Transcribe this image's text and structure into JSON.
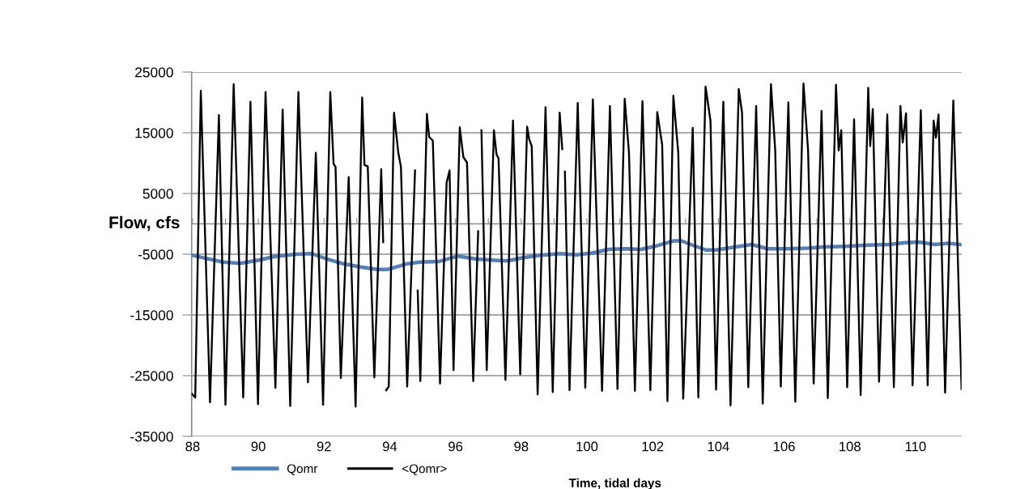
{
  "chart_data": {
    "type": "line",
    "ylabel": "Flow, cfs",
    "xlabel": "Time, tidal days",
    "xlim": [
      87.97,
      111.4
    ],
    "xticks": [
      88,
      {
        "value": 89,
        "label": null
      },
      90,
      {
        "value": 91,
        "label": null
      },
      92,
      {
        "value": 93,
        "label": null
      },
      94,
      {
        "value": 95,
        "label": null
      },
      96,
      {
        "value": 97,
        "label": null
      },
      98,
      {
        "value": 99,
        "label": null
      },
      100,
      {
        "value": 101,
        "label": null
      },
      102,
      {
        "value": 103,
        "label": null
      },
      104,
      {
        "value": 105,
        "label": null
      },
      106,
      {
        "value": 107,
        "label": null
      },
      108,
      {
        "value": 109,
        "label": null
      },
      110,
      {
        "value": 111,
        "label": null
      }
    ],
    "ylim": [
      -35000,
      25000
    ],
    "yticks": [
      -35000,
      -25000,
      -15000,
      -5000,
      5000,
      15000,
      25000
    ],
    "grid": "y",
    "legend": "bottom",
    "marker": "none",
    "line_style": "solid",
    "series": [
      {
        "name": "Qomr",
        "color": "#4f81bd",
        "x": [
          88.0,
          88.92,
          89.45,
          89.99,
          90.48,
          91.14,
          91.63,
          92.04,
          92.61,
          93.11,
          93.6,
          93.93,
          94.5,
          94.91,
          95.49,
          96.06,
          96.64,
          97.21,
          97.58,
          98.03,
          98.53,
          99.18,
          99.67,
          100.17,
          100.66,
          101.15,
          101.65,
          102.06,
          102.63,
          102.88,
          103.21,
          103.62,
          103.94,
          104.52,
          105.01,
          105.5,
          106.08,
          106.73,
          107.23,
          107.88,
          108.54,
          109.2,
          109.69,
          110.1,
          110.59,
          111.0,
          111.37
        ],
        "values": [
          -5200,
          -6300,
          -6500,
          -6000,
          -5400,
          -5000,
          -4900,
          -5700,
          -6600,
          -7100,
          -7500,
          -7500,
          -6600,
          -6300,
          -6200,
          -5300,
          -5800,
          -6000,
          -6100,
          -5600,
          -5200,
          -4900,
          -5100,
          -4800,
          -4200,
          -4100,
          -4200,
          -3700,
          -2800,
          -2800,
          -3500,
          -4300,
          -4300,
          -3800,
          -3400,
          -4100,
          -4100,
          -4000,
          -3800,
          -3700,
          -3500,
          -3400,
          -3100,
          -3000,
          -3400,
          -3200,
          -3400
        ]
      },
      {
        "name": "<Qomr>",
        "color": "#000000",
        "x": [
          87.98,
          88.08,
          88.25,
          88.53,
          88.8,
          89.0,
          89.25,
          89.54,
          89.76,
          89.99,
          90.22,
          90.52,
          90.74,
          90.97,
          91.22,
          91.3,
          91.51,
          91.75,
          91.97,
          92.19,
          92.29,
          92.35,
          92.51,
          92.75,
          92.96,
          93.16,
          93.23,
          93.33,
          93.53,
          93.74,
          93.8,
          93.85,
          93.89,
          93.97,
          94.13,
          94.26,
          94.34,
          94.53,
          94.77,
          94.81,
          94.85,
          94.93,
          95.13,
          95.2,
          95.31,
          95.53,
          95.73,
          95.82,
          95.94,
          96.13,
          96.24,
          96.35,
          96.54,
          96.69,
          96.74,
          96.79,
          96.95,
          97.17,
          97.25,
          97.31,
          97.52,
          97.75,
          97.97,
          98.18,
          98.24,
          98.32,
          98.5,
          98.74,
          98.96,
          99.17,
          99.25,
          99.29,
          99.33,
          99.47,
          99.72,
          99.95,
          100.18,
          100.46,
          100.7,
          100.93,
          101.15,
          101.28,
          101.46,
          101.69,
          101.93,
          102.14,
          102.29,
          102.45,
          102.63,
          102.78,
          102.93,
          103.22,
          103.39,
          103.61,
          103.76,
          103.93,
          104.15,
          104.37,
          104.62,
          104.72,
          104.91,
          105.15,
          105.35,
          105.6,
          105.73,
          105.9,
          106.13,
          106.34,
          106.59,
          106.73,
          106.9,
          107.14,
          107.33,
          107.58,
          107.66,
          107.74,
          107.92,
          108.13,
          108.33,
          108.56,
          108.62,
          108.7,
          108.89,
          109.14,
          109.34,
          109.54,
          109.61,
          109.71,
          109.91,
          110.16,
          110.37,
          110.55,
          110.62,
          110.7,
          110.9,
          111.15,
          111.4
        ],
        "values": [
          -28000,
          -28600,
          21900,
          -29400,
          17900,
          -29800,
          23000,
          -28600,
          20100,
          -29700,
          21700,
          -27000,
          18800,
          -30000,
          21700,
          8600,
          -26100,
          11700,
          -29800,
          21700,
          9900,
          9400,
          -25400,
          7700,
          -30100,
          20800,
          9700,
          9500,
          -25300,
          9000,
          -3000,
          null,
          -27400,
          -26800,
          18300,
          11700,
          9400,
          -26800,
          8800,
          null,
          -11000,
          -25900,
          18100,
          14300,
          13700,
          -26300,
          6800,
          8800,
          -24100,
          15900,
          11000,
          10100,
          -25900,
          -1200,
          null,
          15400,
          -24100,
          15400,
          11400,
          10800,
          -25700,
          17000,
          -24800,
          16000,
          14000,
          12800,
          -28100,
          19200,
          -27700,
          18300,
          12300,
          null,
          8600,
          -27400,
          19900,
          -27000,
          20500,
          -27500,
          19400,
          -27200,
          20600,
          11700,
          -27500,
          20200,
          -27400,
          18400,
          13000,
          -29200,
          21100,
          11700,
          -28800,
          15800,
          -28600,
          22600,
          17000,
          -27300,
          20100,
          -29900,
          22200,
          18300,
          -26900,
          19400,
          -29600,
          23000,
          12100,
          -26800,
          20000,
          -29300,
          23100,
          12100,
          -26300,
          18600,
          -28700,
          22900,
          12100,
          15400,
          -26900,
          17200,
          -28200,
          22400,
          12800,
          18900,
          -26000,
          18000,
          -26900,
          19400,
          13400,
          18200,
          -26600,
          18700,
          -26600,
          17000,
          14200,
          18000,
          -27800,
          20300,
          -27200
        ]
      }
    ]
  }
}
